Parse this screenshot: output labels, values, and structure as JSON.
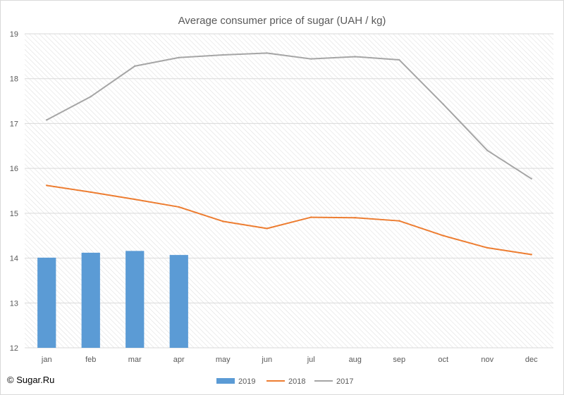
{
  "chart_data": {
    "type": "bar",
    "title": "Average consumer price of sugar (UAH / kg)",
    "xlabel": "",
    "ylabel": "",
    "categories": [
      "jan",
      "feb",
      "mar",
      "apr",
      "may",
      "jun",
      "jul",
      "aug",
      "sep",
      "oct",
      "nov",
      "dec"
    ],
    "ylim": [
      12,
      19
    ],
    "yticks": [
      12,
      13,
      14,
      15,
      16,
      17,
      18,
      19
    ],
    "grid": true,
    "legend_position": "bottom",
    "series": [
      {
        "name": "2019",
        "kind": "bar",
        "color": "#5b9bd5",
        "values": [
          14.01,
          14.12,
          14.16,
          14.07,
          null,
          null,
          null,
          null,
          null,
          null,
          null,
          null
        ]
      },
      {
        "name": "2018",
        "kind": "line",
        "color": "#ed7d31",
        "values": [
          15.62,
          15.47,
          15.31,
          15.14,
          14.82,
          14.66,
          14.91,
          14.9,
          14.83,
          14.5,
          14.23,
          14.08
        ]
      },
      {
        "name": "2017",
        "kind": "line",
        "color": "#a5a5a5",
        "values": [
          17.08,
          17.6,
          18.28,
          18.47,
          18.53,
          18.57,
          18.44,
          18.49,
          18.42,
          17.43,
          16.4,
          15.77
        ]
      }
    ]
  },
  "credit": "© Sugar.Ru"
}
